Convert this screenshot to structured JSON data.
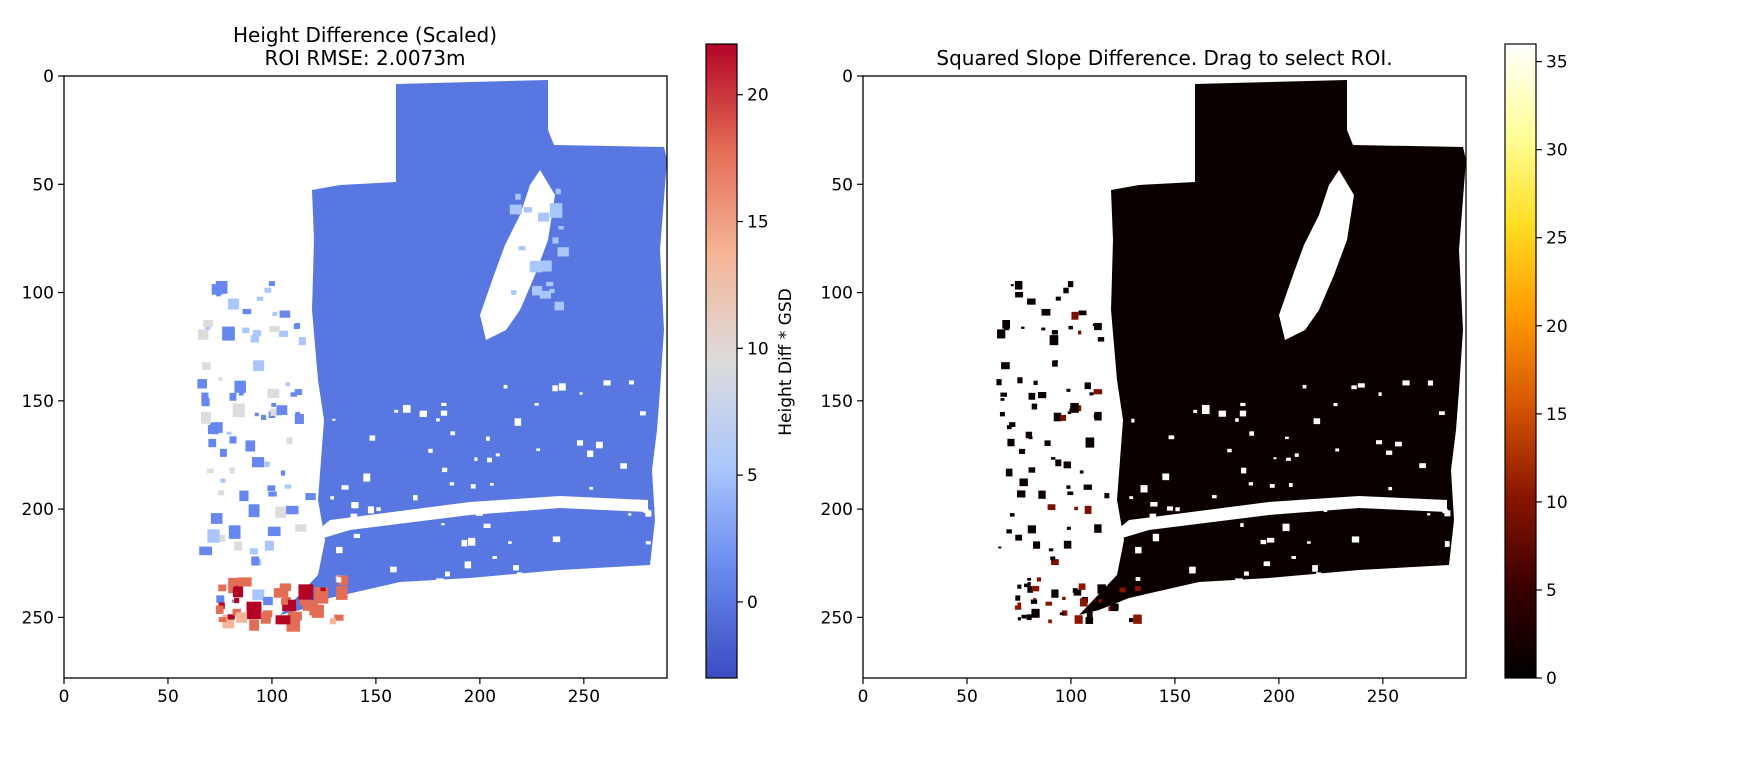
{
  "chart_data": [
    {
      "type": "heatmap",
      "title": "Height Difference (Scaled)",
      "subtitle": "ROI RMSE: 2.0073m",
      "xlabel": "",
      "ylabel": "",
      "xlim": [
        0,
        290
      ],
      "ylim": [
        278,
        0
      ],
      "x_ticks": [
        "0",
        "50",
        "100",
        "150",
        "200",
        "250"
      ],
      "y_ticks": [
        "0",
        "50",
        "100",
        "150",
        "200",
        "250"
      ],
      "colormap": "coolwarm",
      "colorbar": {
        "label": "Height Diff * GSD",
        "range": [
          -3,
          22
        ],
        "ticks": [
          "0",
          "5",
          "10",
          "15",
          "20"
        ]
      },
      "regions": [
        {
          "description": "building footprint",
          "approx_value": -1
        },
        {
          "description": "lower-left scattered debris",
          "approx_value": 17
        },
        {
          "description": "left fringe fragments",
          "approx_value": 8
        }
      ]
    },
    {
      "type": "heatmap",
      "title": "Squared Slope Difference. Drag to select ROI.",
      "xlabel": "",
      "ylabel": "",
      "xlim": [
        0,
        290
      ],
      "ylim": [
        278,
        0
      ],
      "x_ticks": [
        "0",
        "50",
        "100",
        "150",
        "200",
        "250"
      ],
      "y_ticks": [
        "0",
        "50",
        "100",
        "150",
        "200",
        "250"
      ],
      "colormap": "afmhot",
      "colorbar": {
        "label": "",
        "range": [
          0,
          36
        ],
        "ticks": [
          "0",
          "5",
          "10",
          "15",
          "20",
          "25",
          "30",
          "35"
        ]
      },
      "regions": [
        {
          "description": "building footprint",
          "approx_value": 0
        },
        {
          "description": "edge speckles",
          "approx_value": 3
        }
      ]
    }
  ],
  "colors": {
    "coolwarm": [
      "#3b4cc0",
      "#6688ee",
      "#aac7fd",
      "#dddcdc",
      "#f5b597",
      "#e36c55",
      "#b40426"
    ],
    "afmhot": [
      "#000000",
      "#3a0000",
      "#8a1500",
      "#d45500",
      "#ff9900",
      "#ffdd22",
      "#ffff99",
      "#ffffff"
    ],
    "panel1_fill": "#5877e0",
    "panel2_fill": "#0b0000"
  }
}
